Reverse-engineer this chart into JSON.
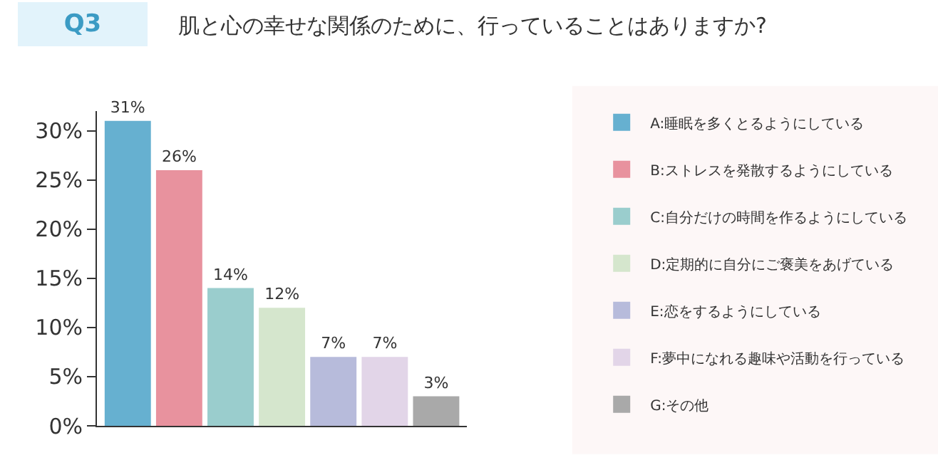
{
  "chart_data": {
    "type": "bar",
    "title": "肌と心の幸せな関係のために、行っていることはありますか?",
    "subtitle": "Q3",
    "categories": [
      null,
      null,
      null,
      null,
      null,
      null,
      null
    ],
    "series": [
      {
        "name": "A:睡眠を多くとるようにしている",
        "color": "#66b0d0",
        "values": [
          31,
          null,
          null,
          null,
          null,
          null,
          null
        ],
        "value_labels": [
          "31%",
          null,
          null,
          null,
          null,
          null,
          null
        ]
      },
      {
        "name": "B:ストレスを発散するようにしている",
        "color": "#e8929e",
        "values": [
          null,
          26,
          null,
          null,
          null,
          null,
          null
        ],
        "value_labels": [
          null,
          "26%",
          null,
          null,
          null,
          null,
          null
        ]
      },
      {
        "name": "C:自分だけの時間を作るようにしている",
        "color": "#9acdcd",
        "values": [
          null,
          null,
          14,
          null,
          null,
          null,
          null
        ],
        "value_labels": [
          null,
          null,
          "14%",
          null,
          null,
          null,
          null
        ]
      },
      {
        "name": "D:定期的に自分にご褒美をあげている",
        "color": "#d5e6cd",
        "values": [
          null,
          null,
          null,
          12,
          null,
          null,
          null
        ],
        "value_labels": [
          null,
          null,
          null,
          "12%",
          null,
          null,
          null
        ]
      },
      {
        "name": "E:恋をするようにしている",
        "color": "#b7bbdb",
        "values": [
          null,
          null,
          null,
          null,
          7,
          null,
          null
        ],
        "value_labels": [
          null,
          null,
          null,
          null,
          "7%",
          null,
          null
        ]
      },
      {
        "name": "F:夢中になれる趣味や活動を行っている",
        "color": "#e2d5e8",
        "values": [
          null,
          null,
          null,
          null,
          null,
          7,
          null
        ],
        "value_labels": [
          null,
          null,
          null,
          null,
          null,
          "7%",
          null
        ]
      },
      {
        "name": "G:その他",
        "color": "#a9a9a9",
        "values": [
          null,
          null,
          null,
          null,
          null,
          null,
          3
        ],
        "value_labels": [
          null,
          null,
          null,
          null,
          null,
          null,
          "3%"
        ]
      }
    ],
    "ylim": [
      0,
      32
    ],
    "yticks": [
      {
        "value": 0,
        "label": "0%"
      },
      {
        "value": 5,
        "label": "5%"
      },
      {
        "value": 10,
        "label": "10%"
      },
      {
        "value": 15,
        "label": "15%"
      },
      {
        "value": 20,
        "label": "20%"
      },
      {
        "value": 25,
        "label": "25%"
      },
      {
        "value": 30,
        "label": "30%"
      }
    ],
    "tick_labels": "y",
    "legend": "right"
  }
}
